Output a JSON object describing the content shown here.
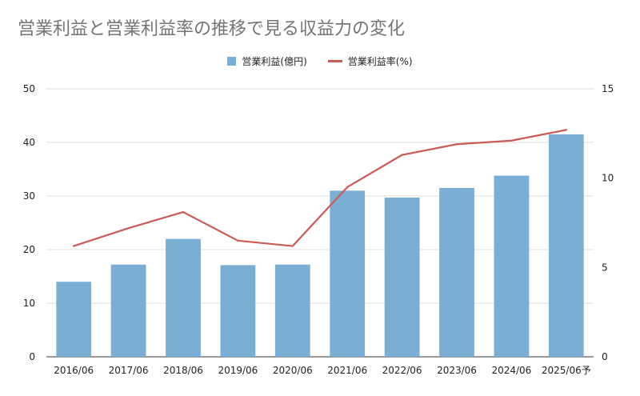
{
  "chart_data": {
    "type": "bar",
    "title": "営業利益と営業利益率の推移で見る収益力の変化",
    "categories": [
      "2016/06",
      "2017/06",
      "2018/06",
      "2019/06",
      "2020/06",
      "2021/06",
      "2022/06",
      "2023/06",
      "2024/06",
      "2025/06予"
    ],
    "series": [
      {
        "name": "営業利益(億円)",
        "type": "bar",
        "axis": "left",
        "color": "#7aaed4",
        "values": [
          14.0,
          17.2,
          22.0,
          17.1,
          17.2,
          31.0,
          29.7,
          31.5,
          33.8,
          41.5
        ]
      },
      {
        "name": "営業利益率(%)",
        "type": "line",
        "axis": "right",
        "color": "#cc5b55",
        "values": [
          6.2,
          7.2,
          8.1,
          6.5,
          6.2,
          9.5,
          11.3,
          11.9,
          12.1,
          12.7
        ]
      }
    ],
    "y_left": {
      "min": 0,
      "max": 50,
      "ticks": [
        0,
        10,
        20,
        30,
        40,
        50
      ]
    },
    "y_right": {
      "min": 0,
      "max": 15,
      "ticks": [
        0,
        5,
        10,
        15
      ]
    },
    "grid": true,
    "legend_position": "top-center"
  }
}
